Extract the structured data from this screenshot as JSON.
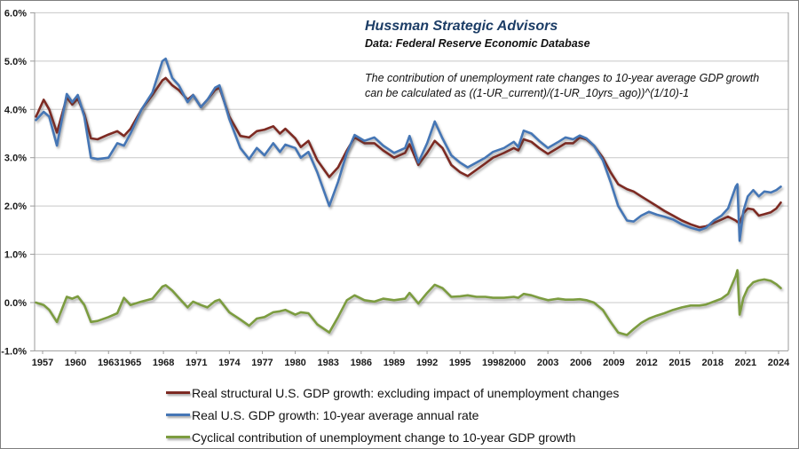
{
  "header": {
    "title": "Hussman Strategic Advisors",
    "source": "Data: Federal Reserve Economic Database"
  },
  "annotation": {
    "line1": "The contribution of unemployment rate changes to 10-year average GDP growth",
    "line2": "can be calculated as ((1-UR_current)/(1-UR_10yrs_ago))^(1/10)-1"
  },
  "chart_data": {
    "type": "line",
    "title": "Hussman Strategic Advisors",
    "subtitle": "Data: Federal Reserve Economic Database",
    "grid": true,
    "legend_position": "bottom",
    "xlim": [
      1956.3,
      2025.3
    ],
    "ylim": [
      -1,
      6
    ],
    "y_tick_labels": [
      "6.0%",
      "5.0%",
      "4.0%",
      "3.0%",
      "2.0%",
      "1.0%",
      "0.0%",
      "-1.0%"
    ],
    "y_tick_values": [
      6,
      5,
      4,
      3,
      2,
      1,
      0,
      -1
    ],
    "x_tick_labels": [
      "1957",
      "1960",
      "1963",
      "1965",
      "1968",
      "1971",
      "1974",
      "1977",
      "1980",
      "1983",
      "1986",
      "1989",
      "1992",
      "1995",
      "1998",
      "2000",
      "2003",
      "2006",
      "2009",
      "2012",
      "2015",
      "2018",
      "2021",
      "2024"
    ],
    "x_tick_years": [
      1957,
      1960,
      1963,
      1965,
      1968,
      1971,
      1974,
      1977,
      1980,
      1983,
      1986,
      1989,
      1992,
      1995,
      1998,
      2000,
      2003,
      2006,
      2009,
      2012,
      2015,
      2018,
      2021,
      2024
    ],
    "x": [
      1956.4,
      1957.1,
      1957.6,
      1958.3,
      1959.2,
      1959.7,
      1960.2,
      1960.8,
      1961.4,
      1962.0,
      1963.0,
      1963.8,
      1964.4,
      1965.0,
      1966.0,
      1967.0,
      1967.9,
      1968.2,
      1968.8,
      1969.4,
      1970.2,
      1970.7,
      1971.4,
      1972.0,
      1972.7,
      1973.1,
      1974.0,
      1975.0,
      1975.8,
      1976.5,
      1977.2,
      1978.0,
      1978.6,
      1979.1,
      1980.0,
      1980.5,
      1981.2,
      1982.0,
      1983.1,
      1983.9,
      1984.7,
      1985.4,
      1986.3,
      1987.2,
      1988.0,
      1989.0,
      1990.0,
      1990.4,
      1991.2,
      1992.0,
      1992.7,
      1993.4,
      1994.2,
      1995.0,
      1995.7,
      1996.5,
      1997.3,
      1998.0,
      1999.0,
      1999.9,
      2000.3,
      2000.8,
      2001.5,
      2002.2,
      2003.0,
      2003.9,
      2004.6,
      2005.3,
      2005.9,
      2006.5,
      2007.2,
      2008.0,
      2008.7,
      2009.4,
      2010.2,
      2010.8,
      2011.5,
      2012.2,
      2012.9,
      2013.6,
      2014.4,
      2015.2,
      2016.0,
      2016.8,
      2017.4,
      2018.1,
      2018.8,
      2019.4,
      2020.1,
      2020.25,
      2020.45,
      2020.8,
      2021.2,
      2021.7,
      2022.2,
      2022.7,
      2023.3,
      2023.8,
      2024.2
    ],
    "series": [
      {
        "name": "Real structural U.S. GDP growth: excluding impact of unemployment changes",
        "color": "#7D2A23",
        "values": [
          3.85,
          4.2,
          4.0,
          3.52,
          4.25,
          4.1,
          4.22,
          3.9,
          3.4,
          3.38,
          3.48,
          3.55,
          3.45,
          3.6,
          4.0,
          4.3,
          4.6,
          4.65,
          4.5,
          4.4,
          4.2,
          4.3,
          4.05,
          4.2,
          4.4,
          4.45,
          3.85,
          3.45,
          3.42,
          3.55,
          3.58,
          3.65,
          3.5,
          3.6,
          3.4,
          3.22,
          3.35,
          2.95,
          2.6,
          2.8,
          3.15,
          3.42,
          3.3,
          3.3,
          3.15,
          3.0,
          3.1,
          3.28,
          2.85,
          3.1,
          3.35,
          3.2,
          2.85,
          2.7,
          2.62,
          2.75,
          2.88,
          3.0,
          3.1,
          3.2,
          3.15,
          3.38,
          3.33,
          3.2,
          3.08,
          3.2,
          3.3,
          3.3,
          3.42,
          3.38,
          3.25,
          3.0,
          2.7,
          2.45,
          2.35,
          2.3,
          2.2,
          2.1,
          2.0,
          1.9,
          1.8,
          1.7,
          1.62,
          1.56,
          1.58,
          1.65,
          1.72,
          1.78,
          1.7,
          1.67,
          1.65,
          1.85,
          1.95,
          1.93,
          1.8,
          1.83,
          1.87,
          1.95,
          2.07
        ]
      },
      {
        "name": "Real U.S. GDP growth: 10-year average annual rate",
        "color": "#4576B5",
        "values": [
          3.78,
          3.95,
          3.85,
          3.25,
          4.32,
          4.15,
          4.3,
          3.85,
          3.0,
          2.97,
          3.0,
          3.3,
          3.25,
          3.5,
          4.0,
          4.35,
          5.0,
          5.05,
          4.65,
          4.5,
          4.15,
          4.3,
          4.05,
          4.2,
          4.45,
          4.5,
          3.8,
          3.2,
          2.97,
          3.2,
          3.05,
          3.3,
          3.12,
          3.27,
          3.2,
          3.0,
          3.12,
          2.7,
          2.0,
          2.5,
          3.1,
          3.47,
          3.35,
          3.42,
          3.25,
          3.1,
          3.2,
          3.45,
          2.9,
          3.3,
          3.75,
          3.4,
          3.05,
          2.9,
          2.8,
          2.9,
          3.0,
          3.12,
          3.2,
          3.33,
          3.22,
          3.56,
          3.5,
          3.35,
          3.2,
          3.32,
          3.42,
          3.38,
          3.46,
          3.4,
          3.25,
          2.95,
          2.5,
          2.0,
          1.7,
          1.68,
          1.8,
          1.88,
          1.82,
          1.78,
          1.72,
          1.62,
          1.55,
          1.5,
          1.55,
          1.7,
          1.8,
          1.95,
          2.4,
          2.45,
          1.28,
          1.9,
          2.2,
          2.33,
          2.2,
          2.3,
          2.28,
          2.33,
          2.4
        ]
      },
      {
        "name": "Cyclical contribution of unemployment change to 10-year GDP growth",
        "color": "#7C9C3F",
        "values": [
          0.0,
          -0.05,
          -0.15,
          -0.4,
          0.12,
          0.08,
          0.13,
          -0.05,
          -0.4,
          -0.38,
          -0.3,
          -0.22,
          0.1,
          -0.05,
          0.02,
          0.08,
          0.33,
          0.36,
          0.25,
          0.1,
          -0.1,
          0.02,
          -0.05,
          -0.1,
          0.03,
          0.06,
          -0.2,
          -0.35,
          -0.48,
          -0.33,
          -0.3,
          -0.2,
          -0.18,
          -0.15,
          -0.25,
          -0.2,
          -0.22,
          -0.45,
          -0.62,
          -0.3,
          0.05,
          0.15,
          0.05,
          0.02,
          0.08,
          0.05,
          0.08,
          0.2,
          -0.02,
          0.2,
          0.37,
          0.3,
          0.12,
          0.13,
          0.15,
          0.12,
          0.12,
          0.1,
          0.1,
          0.12,
          0.1,
          0.18,
          0.15,
          0.1,
          0.05,
          0.08,
          0.06,
          0.06,
          0.07,
          0.05,
          0.0,
          -0.15,
          -0.4,
          -0.62,
          -0.67,
          -0.55,
          -0.42,
          -0.33,
          -0.27,
          -0.22,
          -0.15,
          -0.1,
          -0.06,
          -0.06,
          -0.04,
          0.02,
          0.08,
          0.18,
          0.55,
          0.67,
          -0.25,
          0.1,
          0.3,
          0.42,
          0.46,
          0.48,
          0.45,
          0.38,
          0.3
        ]
      }
    ]
  },
  "colors": {
    "gridline": "#C8C8C8",
    "axis": "#9B9B9B",
    "tick_label": "#1A1A1A",
    "title": "#1C3D66"
  }
}
